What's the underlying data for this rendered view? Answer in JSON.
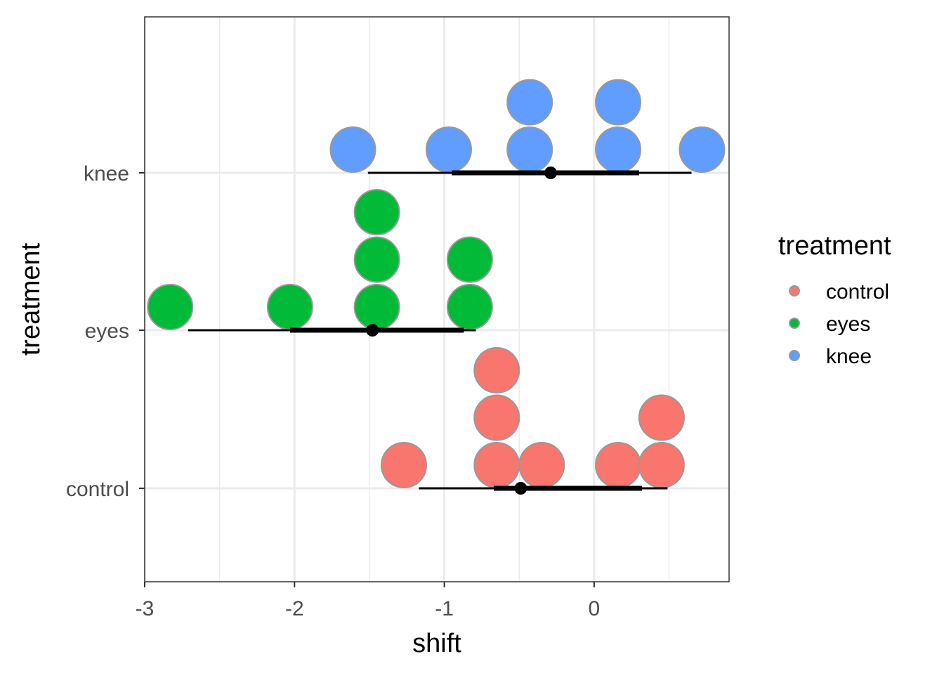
{
  "chart_data": {
    "type": "dotplot",
    "xlabel": "shift",
    "ylabel": "treatment",
    "xlim": [
      -3,
      0.9
    ],
    "x_ticks": [
      -3,
      -2,
      -1,
      0
    ],
    "x_tick_labels": [
      "-3",
      "-2",
      "-1",
      "0"
    ],
    "categories": [
      "control",
      "eyes",
      "knee"
    ],
    "grid": true,
    "legend": {
      "title": "treatment",
      "position": "right",
      "entries": [
        "control",
        "eyes",
        "knee"
      ]
    },
    "series": [
      {
        "name": "control",
        "color": "#F8766D",
        "points": [
          -1.27,
          -0.65,
          -0.65,
          -0.65,
          -0.35,
          0.16,
          0.45,
          0.45
        ],
        "interval_outer": [
          -1.17,
          0.49
        ],
        "interval_inner": [
          -0.67,
          0.32
        ],
        "point_estimate": -0.49
      },
      {
        "name": "eyes",
        "color": "#00BA38",
        "points": [
          -2.83,
          -2.03,
          -1.45,
          -1.45,
          -1.45,
          -0.83,
          -0.83
        ],
        "interval_outer": [
          -2.71,
          -0.79
        ],
        "interval_inner": [
          -2.03,
          -0.87
        ],
        "point_estimate": -1.48
      },
      {
        "name": "knee",
        "color": "#619CFF",
        "points": [
          -1.61,
          -0.97,
          -0.43,
          -0.43,
          0.16,
          0.16,
          0.72
        ],
        "interval_outer": [
          -1.51,
          0.65
        ],
        "interval_inner": [
          -0.95,
          0.3
        ],
        "point_estimate": -0.29
      }
    ]
  }
}
